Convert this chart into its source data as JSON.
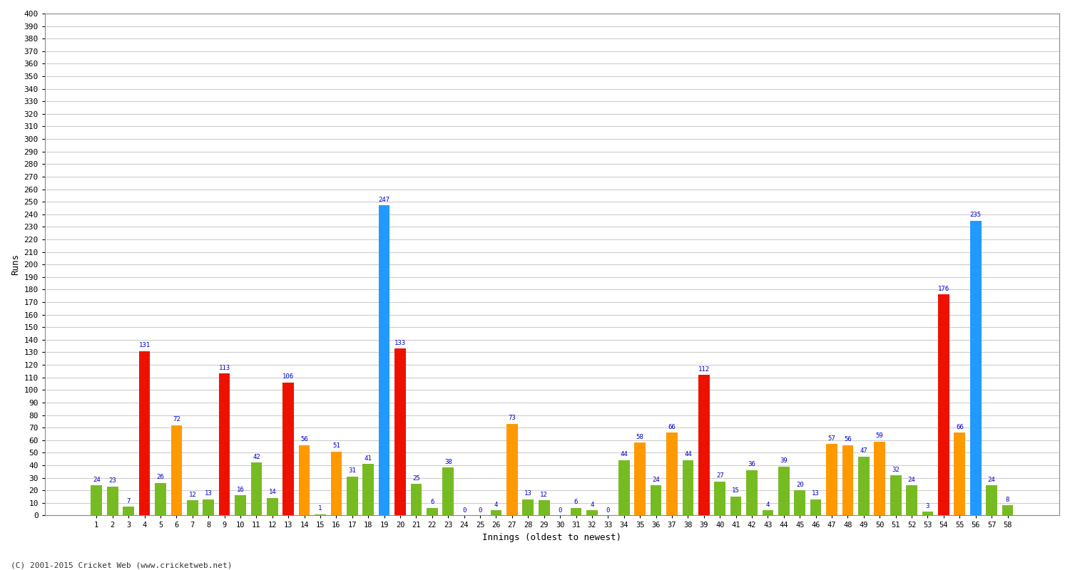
{
  "xlabel": "Innings (oldest to newest)",
  "ylabel": "Runs",
  "copyright": "(C) 2001-2015 Cricket Web (www.cricketweb.net)",
  "ylim": [
    0,
    400
  ],
  "yticks": [
    0,
    10,
    20,
    30,
    40,
    50,
    60,
    70,
    80,
    90,
    100,
    110,
    120,
    130,
    140,
    150,
    160,
    170,
    180,
    190,
    200,
    210,
    220,
    230,
    240,
    250,
    260,
    270,
    280,
    290,
    300,
    310,
    320,
    330,
    340,
    350,
    360,
    370,
    380,
    390,
    400
  ],
  "innings": [
    1,
    2,
    3,
    4,
    5,
    6,
    7,
    8,
    9,
    10,
    11,
    12,
    13,
    14,
    15,
    16,
    17,
    18,
    19,
    20,
    21,
    22,
    23,
    24,
    25,
    26,
    27,
    28,
    29,
    30,
    31,
    32,
    33,
    34,
    35,
    36,
    37,
    38,
    39,
    40,
    41,
    42,
    43,
    44,
    45,
    46,
    47,
    48,
    49,
    50,
    51,
    52,
    53,
    54,
    55,
    56,
    57,
    58
  ],
  "values": [
    24,
    23,
    7,
    131,
    26,
    72,
    12,
    13,
    113,
    16,
    42,
    14,
    106,
    56,
    1,
    51,
    31,
    41,
    247,
    133,
    25,
    6,
    38,
    0,
    0,
    4,
    73,
    13,
    12,
    0,
    6,
    4,
    0,
    44,
    58,
    24,
    66,
    44,
    112,
    27,
    15,
    36,
    4,
    39,
    20,
    13,
    57,
    56,
    47,
    59,
    32,
    24,
    3,
    176,
    66,
    235,
    24,
    8
  ],
  "colors": [
    "#77bb22",
    "#77bb22",
    "#77bb22",
    "#ee1100",
    "#77bb22",
    "#ff9900",
    "#77bb22",
    "#77bb22",
    "#ee1100",
    "#77bb22",
    "#77bb22",
    "#77bb22",
    "#ee1100",
    "#ff9900",
    "#77bb22",
    "#ff9900",
    "#77bb22",
    "#77bb22",
    "#2299ff",
    "#ee1100",
    "#77bb22",
    "#77bb22",
    "#77bb22",
    "#77bb22",
    "#77bb22",
    "#77bb22",
    "#ff9900",
    "#77bb22",
    "#77bb22",
    "#77bb22",
    "#77bb22",
    "#77bb22",
    "#77bb22",
    "#77bb22",
    "#ff9900",
    "#77bb22",
    "#ff9900",
    "#77bb22",
    "#ee1100",
    "#77bb22",
    "#77bb22",
    "#77bb22",
    "#77bb22",
    "#77bb22",
    "#77bb22",
    "#77bb22",
    "#ff9900",
    "#ff9900",
    "#77bb22",
    "#ff9900",
    "#77bb22",
    "#77bb22",
    "#77bb22",
    "#ee1100",
    "#ff9900",
    "#2299ff",
    "#77bb22",
    "#77bb22"
  ],
  "label_color": "#0000cc",
  "bg_color": "#ffffff",
  "grid_color": "#cccccc",
  "bar_width": 0.7
}
